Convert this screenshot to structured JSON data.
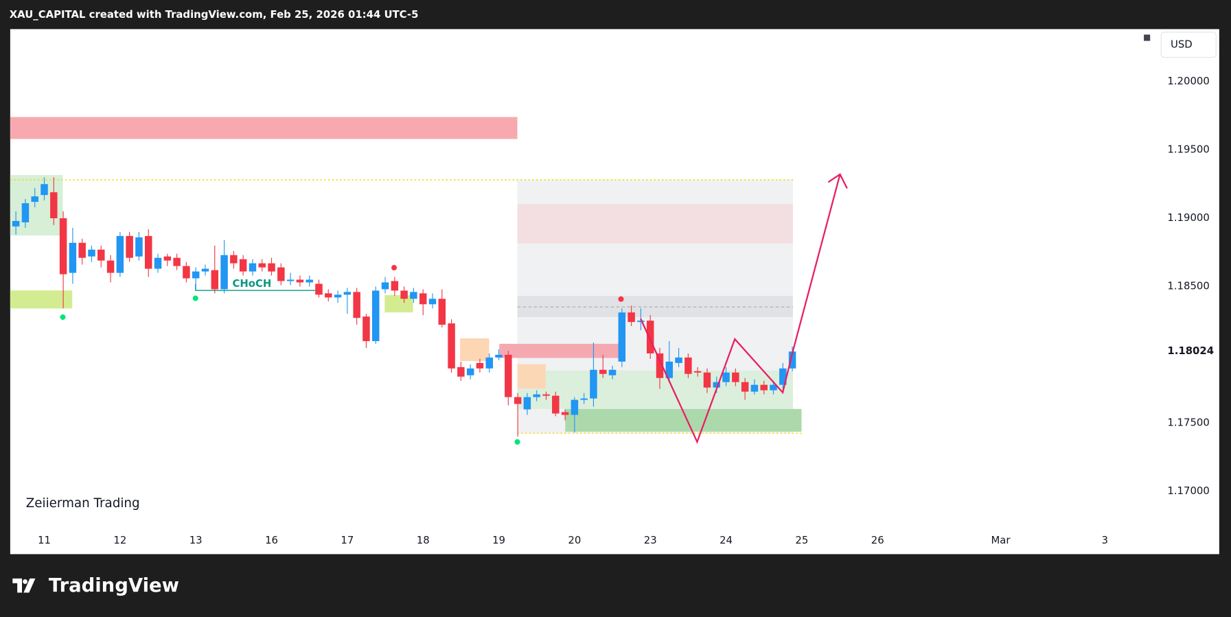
{
  "chart_data": {
    "type": "candlestick",
    "title": "XAU_CAPITAL created with TradingView.com, Feb 25, 2026 01:44 UTC-5",
    "watermark": "Zeiierman Trading",
    "currency": "USD",
    "annotation": "CHoCH",
    "brand": "TradingView",
    "up_color": "#2196f3",
    "down_color": "#f23645",
    "open": [
      1.1894,
      1.1897,
      1.1912,
      1.1917,
      1.1919,
      1.19,
      1.186,
      1.1882,
      1.1872,
      1.1877,
      1.1869,
      1.186,
      1.1887,
      1.1872,
      1.1887,
      1.1863,
      1.1872,
      1.1871,
      1.1865,
      1.1856,
      1.1861,
      1.1862,
      1.1848,
      1.1873,
      1.187,
      1.1861,
      1.1867,
      1.1867,
      1.1864,
      1.1854,
      1.1855,
      1.1853,
      1.1852,
      1.1845,
      1.1842,
      1.1844,
      1.1846,
      1.1828,
      1.181,
      1.1848,
      1.1854,
      1.1847,
      1.1841,
      1.1845,
      1.1837,
      1.1841,
      1.1823,
      1.1791,
      1.1785,
      1.1794,
      1.179,
      1.1798,
      1.18,
      1.1769,
      1.176,
      1.1769,
      1.1771,
      1.177,
      1.1758,
      1.1756,
      1.1767,
      1.1768,
      1.1789,
      1.1785,
      1.1795,
      1.1831,
      1.1824,
      1.1825,
      1.1801,
      1.1783,
      1.1794,
      1.1798,
      1.1788,
      1.1787,
      1.1776,
      1.178,
      1.1787,
      1.178,
      1.1773,
      1.1778,
      1.1774,
      1.1778,
      1.179
    ],
    "high": [
      1.1905,
      1.1914,
      1.1922,
      1.193,
      1.193,
      1.1905,
      1.1893,
      1.1885,
      1.188,
      1.188,
      1.1873,
      1.189,
      1.189,
      1.189,
      1.1892,
      1.1874,
      1.1874,
      1.1874,
      1.1868,
      1.1864,
      1.1866,
      1.188,
      1.1884,
      1.1876,
      1.1873,
      1.187,
      1.187,
      1.1871,
      1.1867,
      1.186,
      1.1858,
      1.1858,
      1.1855,
      1.1848,
      1.1847,
      1.1849,
      1.1849,
      1.183,
      1.185,
      1.1857,
      1.1857,
      1.185,
      1.1849,
      1.1848,
      1.1845,
      1.1848,
      1.1826,
      1.1795,
      1.1793,
      1.1797,
      1.1801,
      1.1804,
      1.1803,
      1.1772,
      1.1772,
      1.1774,
      1.1773,
      1.1773,
      1.176,
      1.1769,
      1.1772,
      1.1809,
      1.18,
      1.1792,
      1.1834,
      1.1836,
      1.1834,
      1.1829,
      1.1805,
      1.181,
      1.1805,
      1.1801,
      1.1791,
      1.179,
      1.1784,
      1.1791,
      1.179,
      1.1783,
      1.1782,
      1.1781,
      1.1781,
      1.1794,
      1.1806
    ],
    "low": [
      1.1888,
      1.1893,
      1.1908,
      1.1913,
      1.1895,
      1.1834,
      1.1852,
      1.1866,
      1.1868,
      1.1864,
      1.1853,
      1.1857,
      1.1868,
      1.1869,
      1.1857,
      1.186,
      1.1865,
      1.1862,
      1.1853,
      1.1848,
      1.1858,
      1.1845,
      1.1845,
      1.1863,
      1.1858,
      1.1858,
      1.1861,
      1.1858,
      1.1851,
      1.1851,
      1.185,
      1.185,
      1.1842,
      1.1839,
      1.1838,
      1.183,
      1.1822,
      1.1805,
      1.1808,
      1.1845,
      1.1843,
      1.1838,
      1.1838,
      1.1829,
      1.1834,
      1.182,
      1.1787,
      1.1781,
      1.1782,
      1.1787,
      1.1787,
      1.1796,
      1.1763,
      1.174,
      1.1756,
      1.1766,
      1.1767,
      1.1755,
      1.1752,
      1.1743,
      1.1764,
      1.1762,
      1.1783,
      1.1782,
      1.1791,
      1.1821,
      1.1818,
      1.1797,
      1.1775,
      1.178,
      1.1791,
      1.1783,
      1.1784,
      1.1772,
      1.1772,
      1.1777,
      1.1777,
      1.1767,
      1.1771,
      1.1771,
      1.1771,
      1.1775,
      1.1788
    ],
    "close": [
      1.1898,
      1.1911,
      1.1916,
      1.1925,
      1.19,
      1.1859,
      1.1882,
      1.1871,
      1.1877,
      1.1869,
      1.186,
      1.1887,
      1.1871,
      1.1886,
      1.1863,
      1.1871,
      1.1869,
      1.1865,
      1.1856,
      1.1861,
      1.1863,
      1.1848,
      1.1873,
      1.1867,
      1.1861,
      1.1867,
      1.1864,
      1.1861,
      1.1854,
      1.1855,
      1.1853,
      1.1855,
      1.1844,
      1.1842,
      1.1844,
      1.1846,
      1.1827,
      1.181,
      1.1847,
      1.1853,
      1.1847,
      1.1841,
      1.1846,
      1.1837,
      1.1841,
      1.1822,
      1.179,
      1.1784,
      1.179,
      1.179,
      1.1798,
      1.18,
      1.1769,
      1.1764,
      1.1769,
      1.1771,
      1.177,
      1.1757,
      1.1756,
      1.1767,
      1.1768,
      1.1789,
      1.1786,
      1.1789,
      1.1831,
      1.1824,
      1.1825,
      1.1801,
      1.1783,
      1.1795,
      1.1798,
      1.1786,
      1.1787,
      1.1776,
      1.178,
      1.1787,
      1.178,
      1.1773,
      1.1778,
      1.1774,
      1.1778,
      1.179,
      1.18024
    ],
    "last_price": 1.18024,
    "xlim": [
      -0.6,
      120.2
    ],
    "xticks": [
      {
        "value": 3,
        "label": "11"
      },
      {
        "value": 11,
        "label": "12"
      },
      {
        "value": 19,
        "label": "13"
      },
      {
        "value": 27,
        "label": "16"
      },
      {
        "value": 35,
        "label": "17"
      },
      {
        "value": 43,
        "label": "18"
      },
      {
        "value": 51,
        "label": "19"
      },
      {
        "value": 59,
        "label": "20"
      },
      {
        "value": 67,
        "label": "23"
      },
      {
        "value": 75,
        "label": "24"
      },
      {
        "value": 83,
        "label": "25"
      },
      {
        "value": 91,
        "label": "26"
      },
      {
        "value": 104,
        "label": "Mar"
      },
      {
        "value": 115,
        "label": "3"
      }
    ],
    "ylim": [
      1.1654,
      1.20385
    ],
    "yticks": [
      {
        "value": 1.2,
        "label": "1.20000"
      },
      {
        "value": 1.195,
        "label": "1.19500"
      },
      {
        "value": 1.19,
        "label": "1.19000"
      },
      {
        "value": 1.185,
        "label": "1.18500"
      },
      {
        "value": 1.175,
        "label": "1.17500"
      },
      {
        "value": 1.17,
        "label": "1.17000"
      }
    ],
    "grid": false
  }
}
